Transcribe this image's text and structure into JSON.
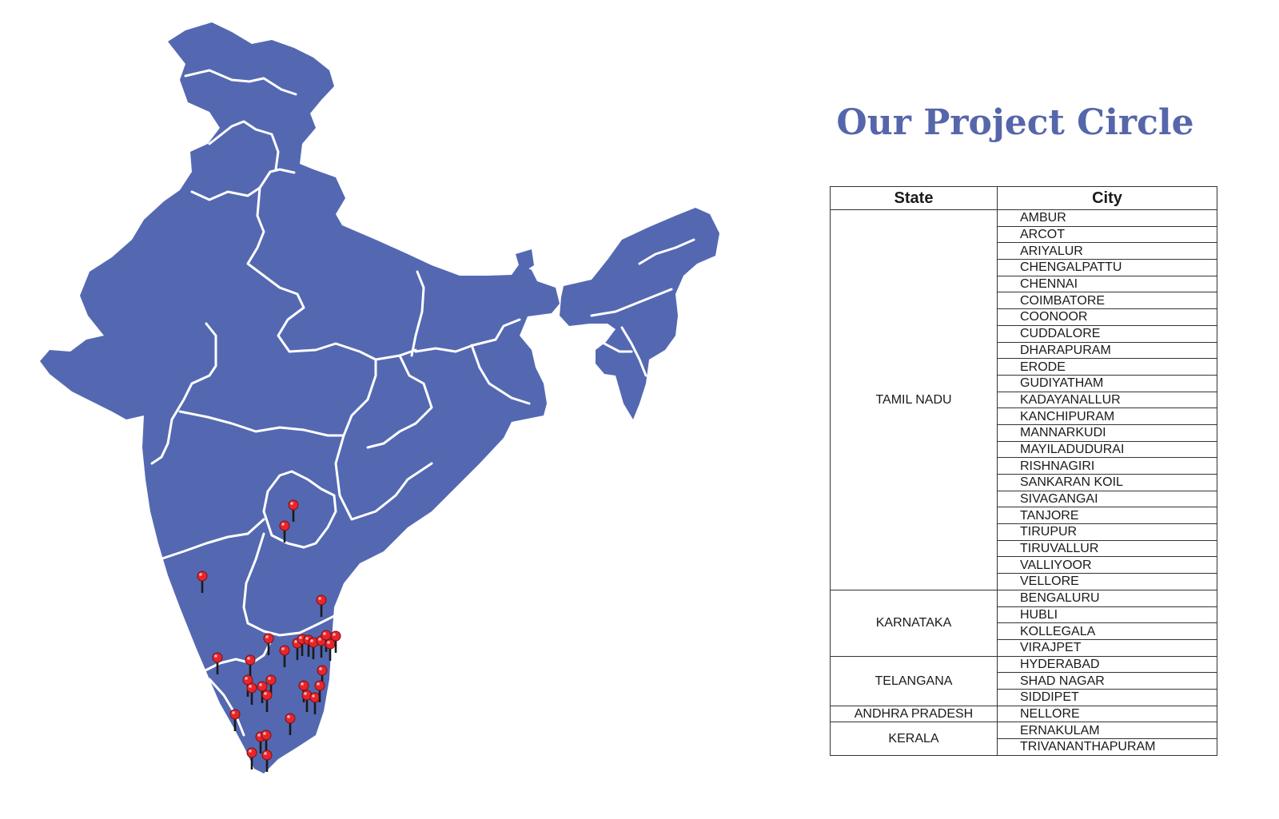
{
  "title": "Our Project Circle",
  "colors": {
    "map_fill": "#5468b2",
    "state_border": "#ffffff",
    "pin_head": "#e8252b",
    "pin_stem": "#1a1a1a",
    "title": "#5566aa"
  },
  "icons": {
    "pin": "map-pin-icon"
  },
  "table": {
    "headers": {
      "state": "State",
      "city": "City"
    },
    "groups": [
      {
        "state": "TAMIL NADU",
        "cities": [
          "AMBUR",
          "ARCOT",
          "ARIYALUR",
          "CHENGALPATTU",
          "CHENNAI",
          "COIMBATORE",
          "COONOOR",
          "CUDDALORE",
          "DHARAPURAM",
          "ERODE",
          "GUDIYATHAM",
          "KADAYANALLUR",
          "KANCHIPURAM",
          "MANNARKUDI",
          "MAYILADUDURAI",
          "RISHNAGIRI",
          "SANKARAN KOIL",
          "SIVAGANGAI",
          "TANJORE",
          "TIRUPUR",
          "TIRUVALLUR",
          "VALLIYOOR",
          "VELLORE"
        ]
      },
      {
        "state": "KARNATAKA",
        "cities": [
          "BENGALURU",
          "HUBLI",
          "KOLLEGALA",
          "VIRAJPET"
        ]
      },
      {
        "state": "TELANGANA",
        "cities": [
          "HYDERABAD",
          "SHAD NAGAR",
          "SIDDIPET"
        ]
      },
      {
        "state": "ANDHRA PRADESH",
        "cities": [
          "NELLORE"
        ]
      },
      {
        "state": "KERALA",
        "cities": [
          "ERNAKULAM",
          "TRIVANANTHAPURAM"
        ]
      }
    ]
  }
}
